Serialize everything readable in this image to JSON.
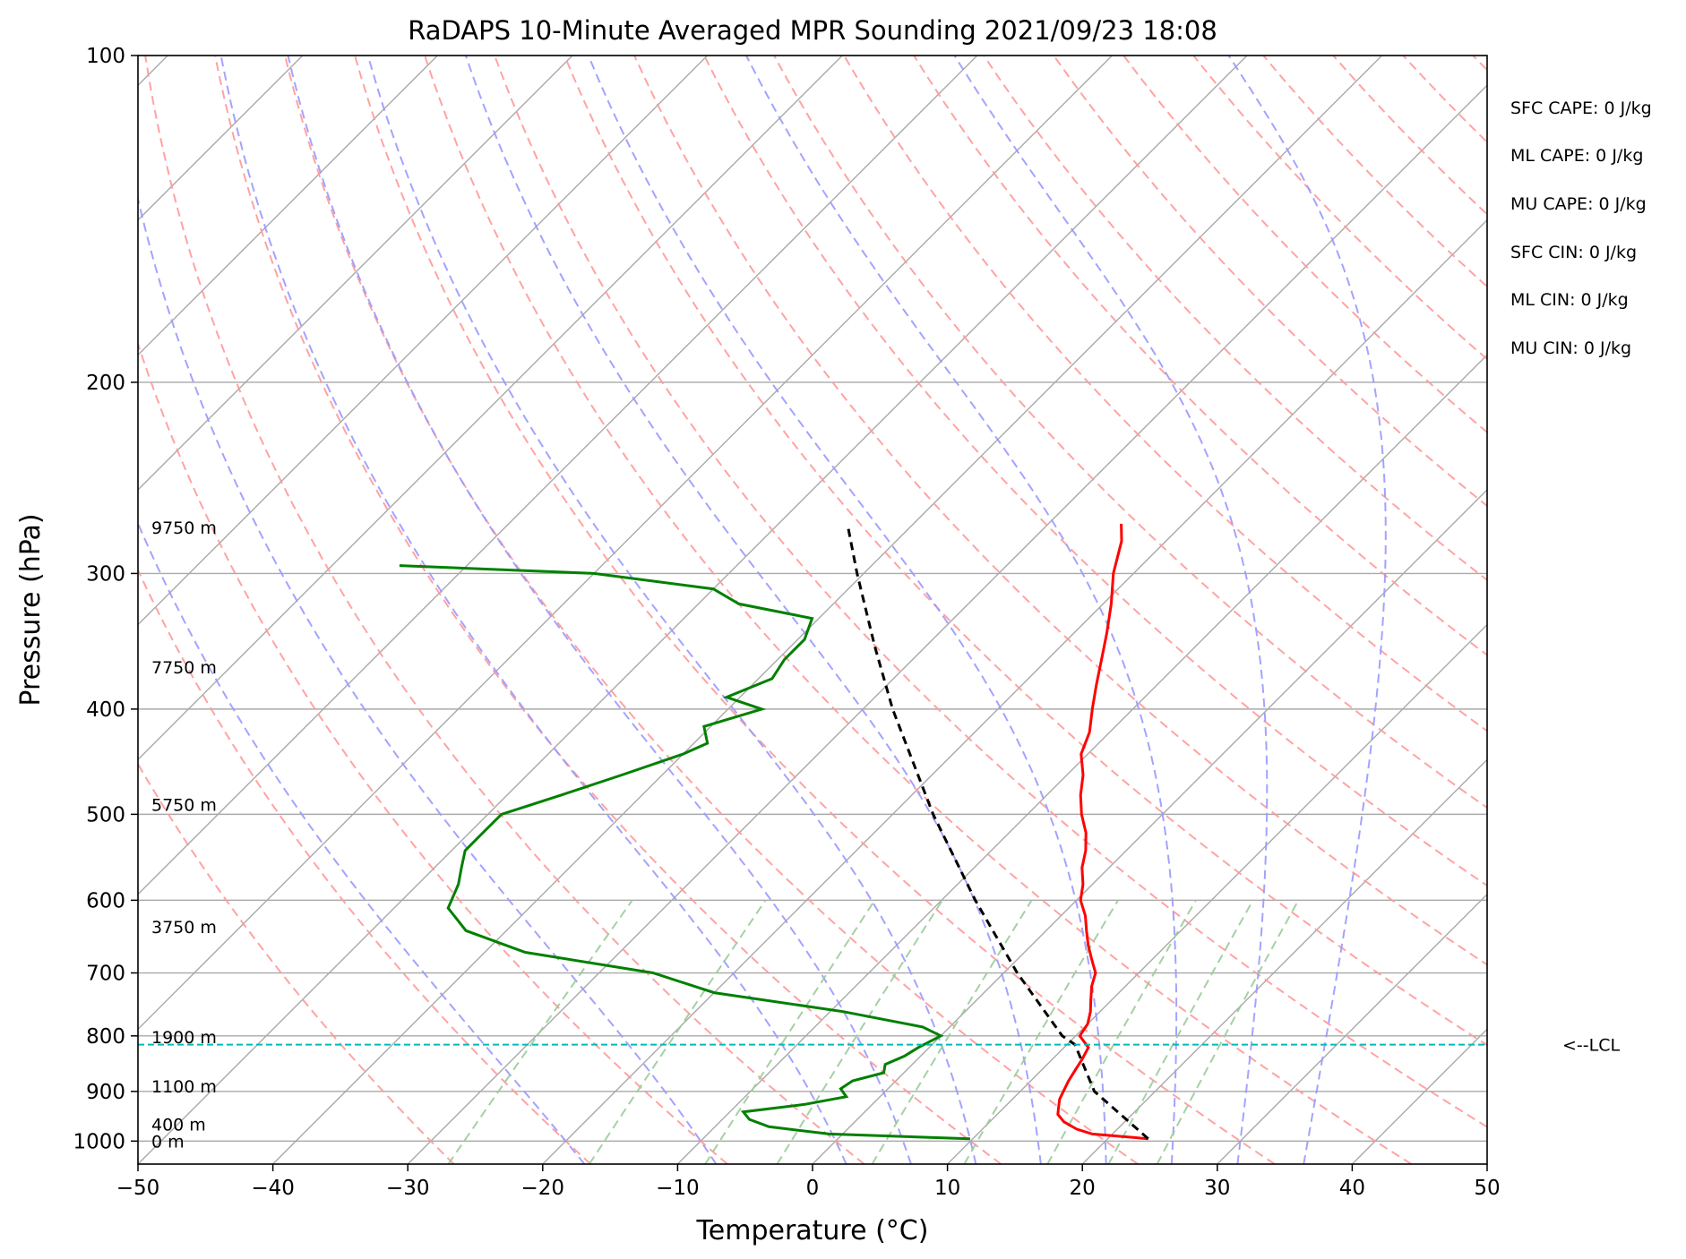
{
  "chart_data": {
    "type": "line",
    "title": "RaDAPS 10-Minute Averaged MPR Sounding 2021/09/23 18:08",
    "xlabel": "Temperature (°C)",
    "ylabel": "Pressure (hPa)",
    "xlim": [
      -50,
      50
    ],
    "ylim": [
      1050,
      100
    ],
    "y_scale": "log",
    "skew": "skew-T",
    "grid": true,
    "xticks": [
      -50,
      -40,
      -30,
      -20,
      -10,
      0,
      10,
      20,
      30,
      40,
      50
    ],
    "xtick_labels": [
      "−50",
      "−40",
      "−30",
      "−20",
      "−10",
      "0",
      "10",
      "20",
      "30",
      "40",
      "50"
    ],
    "yticks": [
      1000,
      900,
      800,
      700,
      600,
      500,
      400,
      300,
      200,
      100
    ],
    "ytick_labels": [
      "1000",
      "900",
      "800",
      "700",
      "600",
      "500",
      "400",
      "300",
      "200",
      "100"
    ],
    "series": [
      {
        "color": "#ff0000",
        "p": [
          995,
          985,
          975,
          960,
          945,
          930,
          915,
          900,
          880,
          860,
          840,
          820,
          800,
          780,
          760,
          740,
          720,
          700,
          680,
          660,
          640,
          620,
          600,
          580,
          560,
          540,
          520,
          500,
          480,
          460,
          440,
          420,
          400,
          380,
          360,
          340,
          320,
          300,
          280,
          270
        ],
        "T": [
          23,
          18.5,
          17,
          15.5,
          14.5,
          14.0,
          13.5,
          13.2,
          12.8,
          12.5,
          12.2,
          11.8,
          10.3,
          10.0,
          9.3,
          8.4,
          7.5,
          6.8,
          5.5,
          4.2,
          3.0,
          1.8,
          0.3,
          -0.7,
          -2.0,
          -3.0,
          -4.3,
          -6.0,
          -7.5,
          -8.8,
          -10.5,
          -11.5,
          -13.0,
          -14.5,
          -16.0,
          -17.6,
          -19.4,
          -21.5,
          -23.3,
          -24.6
        ]
      },
      {
        "color": "#008000",
        "p": [
          995,
          985,
          970,
          955,
          940,
          925,
          910,
          895,
          880,
          865,
          850,
          835,
          820,
          800,
          785,
          760,
          730,
          700,
          670,
          640,
          610,
          580,
          560,
          540,
          520,
          500,
          480,
          460,
          440,
          430,
          415,
          400,
          390,
          375,
          360,
          345,
          330,
          320,
          310,
          300,
          295
        ],
        "T": [
          9.8,
          -1,
          -6,
          -8,
          -9,
          -5,
          -2.5,
          -3.5,
          -3.2,
          -1.5,
          -2.0,
          -1.2,
          -0.8,
          0.0,
          -2,
          -9,
          -20,
          -26,
          -37,
          -43,
          -46,
          -47,
          -48,
          -49,
          -49,
          -49,
          -46,
          -43,
          -40,
          -39,
          -40.5,
          -37.5,
          -41,
          -39,
          -39.5,
          -39.5,
          -40.5,
          -47,
          -50,
          -60,
          -75
        ]
      },
      {
        "color": "#000000",
        "dashed": true,
        "p": [
          995,
          900,
          815,
          800,
          700,
          600,
          500,
          400,
          350,
          300,
          270
        ],
        "T": [
          23,
          15.5,
          10.6,
          9.0,
          1.0,
          -7.5,
          -17.0,
          -27.8,
          -33.8,
          -40.5,
          -44.9
        ]
      }
    ],
    "lcl": {
      "p": 815,
      "label": "<--LCL",
      "color": "#00bbbb"
    },
    "height_labels": [
      {
        "p": 1000,
        "text": "0 m"
      },
      {
        "p": 965,
        "text": "400 m"
      },
      {
        "p": 890,
        "text": "1100 m"
      },
      {
        "p": 802,
        "text": "1900 m"
      },
      {
        "p": 635,
        "text": "3750 m"
      },
      {
        "p": 490,
        "text": "5750 m"
      },
      {
        "p": 366,
        "text": "7750 m"
      },
      {
        "p": 272,
        "text": "9750 m"
      }
    ],
    "annotations": [
      "SFC CAPE: 0 J/kg",
      "ML CAPE: 0 J/kg",
      "MU CAPE: 0 J/kg",
      "SFC CIN: 0 J/kg",
      "ML CIN: 0 J/kg",
      "MU CIN: 0 J/kg"
    ],
    "background_colors": {
      "isotherms": "#a9a9a9",
      "dry_adiabats": "#ff9999",
      "moist_adiabats": "#9999ff",
      "mixing_ratio": "#99cc99"
    }
  }
}
